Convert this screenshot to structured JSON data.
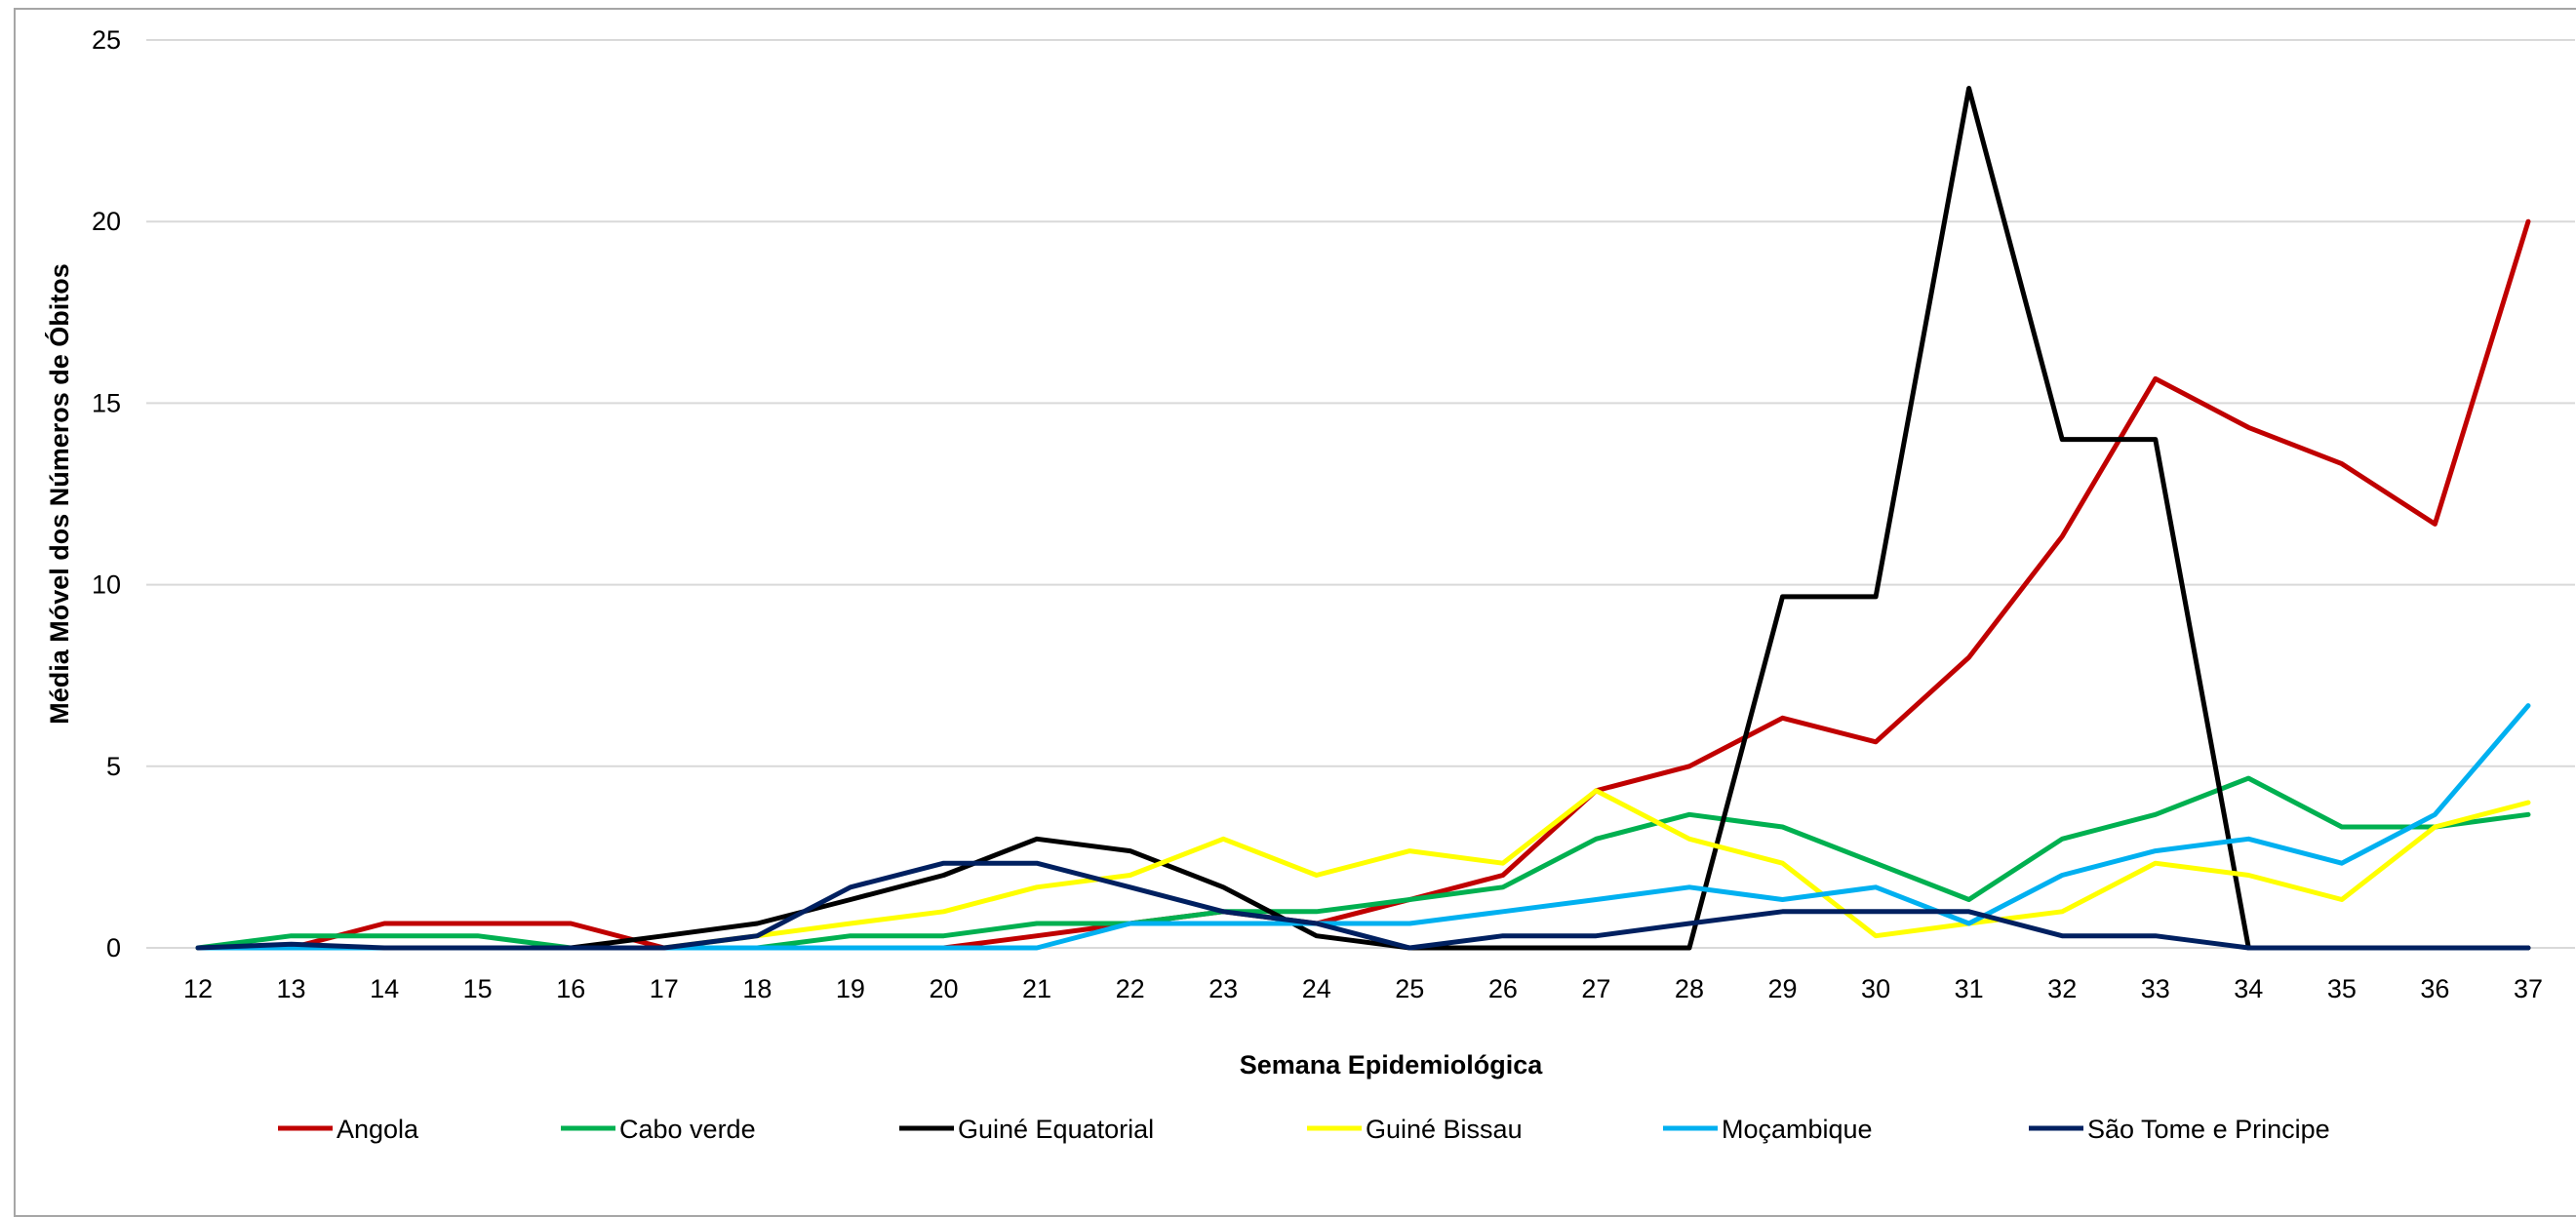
{
  "chart_data": {
    "type": "line",
    "title": "",
    "xlabel": "Semana Epidemiológica",
    "ylabel": "Média Móvel dos Números de Óbitos",
    "ylim": [
      0,
      25
    ],
    "yticks": [
      0,
      5,
      10,
      15,
      20,
      25
    ],
    "grid": "horizontal",
    "legend_position": "bottom",
    "categories": [
      "12",
      "13",
      "14",
      "15",
      "16",
      "17",
      "18",
      "19",
      "20",
      "21",
      "22",
      "23",
      "24",
      "25",
      "26",
      "27",
      "28",
      "29",
      "30",
      "31",
      "32",
      "33",
      "34",
      "35",
      "36",
      "37"
    ],
    "series": [
      {
        "name": "Angola",
        "color": "#C00000",
        "values": [
          0,
          0,
          0.67,
          0.67,
          0.67,
          0,
          0,
          0,
          0,
          0.33,
          0.67,
          1,
          0.67,
          1.33,
          2,
          4.33,
          5,
          6.33,
          5.67,
          8,
          11.33,
          15.67,
          14.33,
          13.33,
          11.67,
          20
        ]
      },
      {
        "name": "Cabo verde",
        "color": "#00B050",
        "values": [
          0,
          0.33,
          0.33,
          0.33,
          0,
          0,
          0,
          0.33,
          0.33,
          0.67,
          0.67,
          1,
          1,
          1.33,
          1.67,
          3,
          3.67,
          3.33,
          2.33,
          1.33,
          3,
          3.67,
          4.67,
          3.33,
          3.33,
          3.67
        ]
      },
      {
        "name": "Guiné Equatorial",
        "color": "#000000",
        "values": [
          0,
          0,
          0,
          0,
          0,
          0.33,
          0.67,
          1.33,
          2,
          3,
          2.67,
          1.67,
          0.33,
          0,
          0,
          0,
          0,
          9.67,
          9.67,
          23.67,
          14,
          14,
          0,
          0,
          0,
          0
        ]
      },
      {
        "name": "Guiné Bissau",
        "color": "#FFFF00",
        "values": [
          0,
          0,
          0,
          0,
          0,
          0,
          0.33,
          0.67,
          1,
          1.67,
          2,
          3,
          2,
          2.67,
          2.33,
          4.33,
          3,
          2.33,
          0.33,
          0.67,
          1,
          2.33,
          2,
          1.33,
          3.33,
          4
        ]
      },
      {
        "name": "Moçambique",
        "color": "#00B0F0",
        "values": [
          0,
          0,
          0,
          0,
          0,
          0,
          0,
          0,
          0,
          0,
          0.67,
          0.67,
          0.67,
          0.67,
          1,
          1.33,
          1.67,
          1.33,
          1.67,
          0.67,
          2,
          2.67,
          3,
          2.33,
          3.67,
          6.67
        ]
      },
      {
        "name": "São Tome e Principe",
        "color": "#002060",
        "values": [
          0,
          0.1,
          0,
          0,
          0,
          0,
          0.33,
          1.67,
          2.33,
          2.33,
          1.67,
          1,
          0.67,
          0,
          0.33,
          0.33,
          0.67,
          1,
          1,
          1,
          0.33,
          0.33,
          0,
          0,
          0,
          0
        ]
      }
    ]
  }
}
